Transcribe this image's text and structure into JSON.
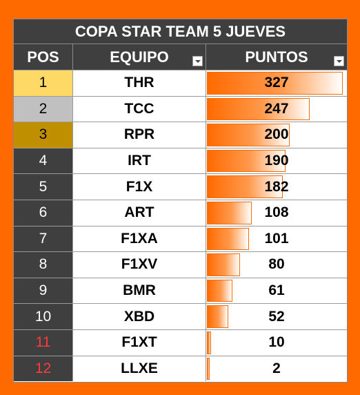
{
  "title": "COPA STAR TEAM 5 JUEVES",
  "headers": {
    "pos": "POS",
    "equipo": "EQUIPO",
    "puntos": "PUNTOS"
  },
  "max_points": 327,
  "colors": {
    "accent": "#ff6a00",
    "header_bg": "#3f3f3f",
    "gold": "#ffd966",
    "silver": "#c0c0c0",
    "bronze": "#bf8f00",
    "relegated_text": "#ff3b3b"
  },
  "rows": [
    {
      "pos": "1",
      "team": "THR",
      "points": 327,
      "badge": "gold"
    },
    {
      "pos": "2",
      "team": "TCC",
      "points": 247,
      "badge": "silver"
    },
    {
      "pos": "3",
      "team": "RPR",
      "points": 200,
      "badge": "bronze"
    },
    {
      "pos": "4",
      "team": "IRT",
      "points": 190,
      "badge": "normal"
    },
    {
      "pos": "5",
      "team": "F1X",
      "points": 182,
      "badge": "normal"
    },
    {
      "pos": "6",
      "team": "ART",
      "points": 108,
      "badge": "normal"
    },
    {
      "pos": "7",
      "team": "F1XA",
      "points": 101,
      "badge": "normal"
    },
    {
      "pos": "8",
      "team": "F1XV",
      "points": 80,
      "badge": "normal"
    },
    {
      "pos": "9",
      "team": "BMR",
      "points": 61,
      "badge": "normal"
    },
    {
      "pos": "10",
      "team": "XBD",
      "points": 52,
      "badge": "normal"
    },
    {
      "pos": "11",
      "team": "F1XT",
      "points": 10,
      "badge": "relegated"
    },
    {
      "pos": "12",
      "team": "LLXE",
      "points": 2,
      "badge": "relegated"
    }
  ]
}
